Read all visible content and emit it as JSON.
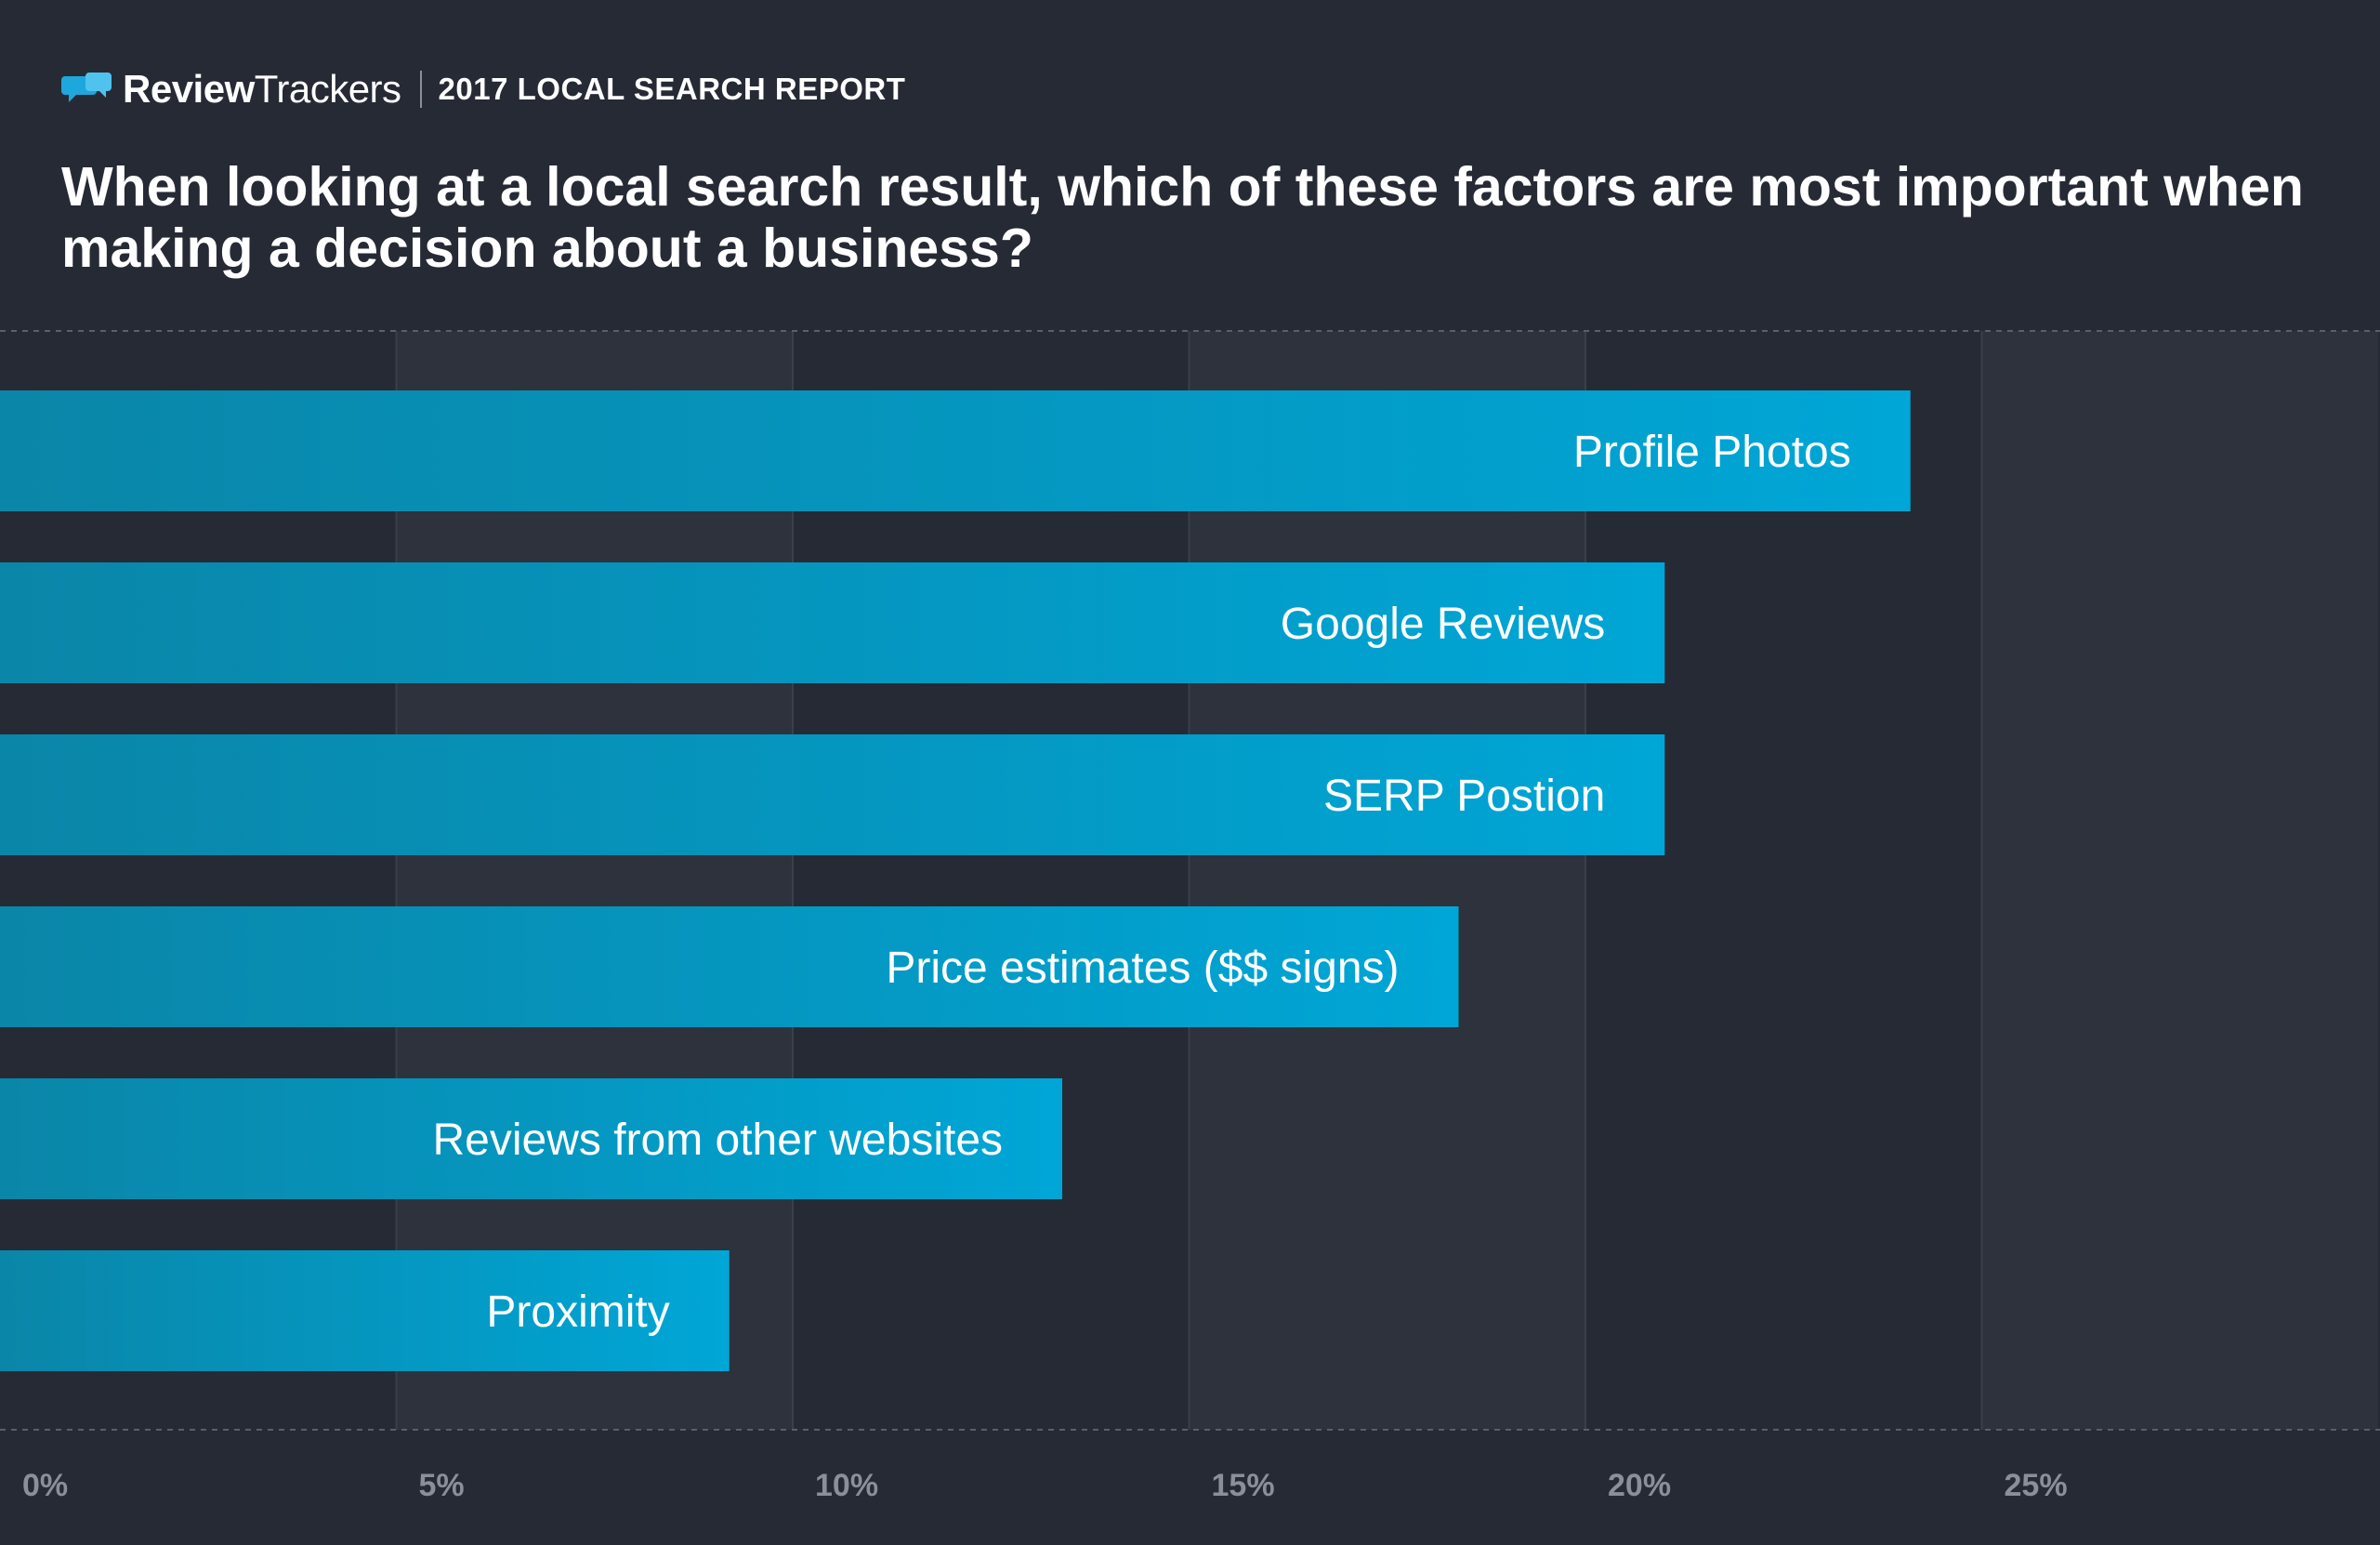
{
  "brand": {
    "name_part1": "Review",
    "name_part2": "Trackers",
    "report_label": "2017 LOCAL SEARCH REPORT"
  },
  "colors": {
    "background": "#262a35",
    "band": "#2d323d",
    "bar_start": "#0a86a8",
    "bar_end": "#00a6d6",
    "axis_text": "#8a8f99"
  },
  "icons": {
    "logo": "speech-bubbles-icon"
  },
  "chart_data": {
    "type": "bar",
    "orientation": "horizontal",
    "title": "When looking at a local search result, which of these factors are most important when making a decision about a business?",
    "categories": [
      "Profile Photos",
      "Google Reviews",
      "SERP Postion",
      "Price estimates ($$ signs)",
      "Reviews from other websites",
      "Proximity"
    ],
    "values": [
      24.1,
      21.0,
      21.0,
      18.4,
      13.4,
      9.2
    ],
    "xlim": [
      0,
      30
    ],
    "x_ticks": [
      0,
      5,
      10,
      15,
      20,
      25
    ],
    "x_tick_labels": [
      "0%",
      "5%",
      "10%",
      "15%",
      "20%",
      "25%"
    ],
    "xlabel": "",
    "ylabel": "",
    "grid": "alternating vertical bands",
    "legend": "none"
  }
}
